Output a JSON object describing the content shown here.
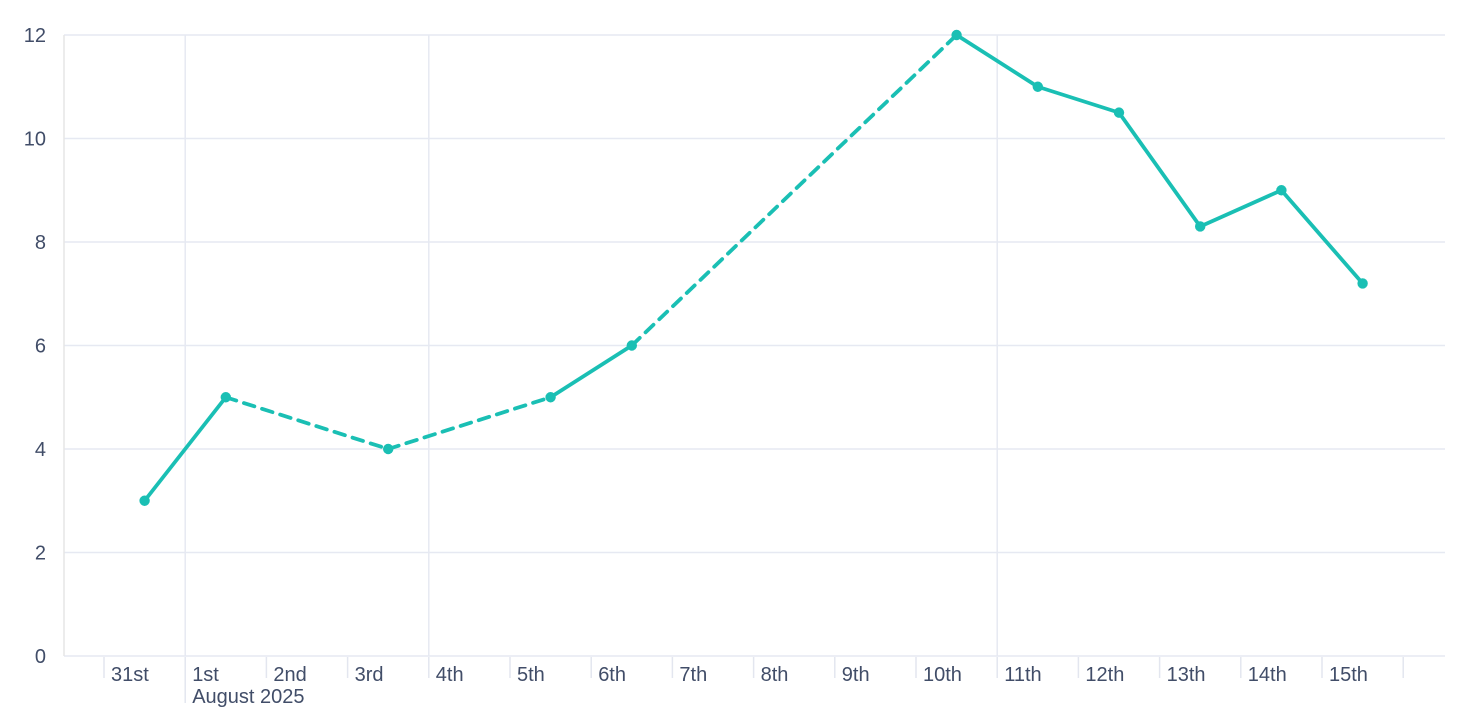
{
  "chart": {
    "background_color": "#ffffff",
    "line_color": "#1abfb4",
    "grid_color": "#e6e9f2",
    "axis_line_color": "#e6e6e6",
    "tick_color": "#e3e6ef",
    "label_color": "#414d68"
  },
  "chart_data": {
    "type": "line",
    "title": "",
    "xlabel": "",
    "ylabel": "",
    "x_tick_labels": [
      "31st",
      "1st",
      "2nd",
      "3rd",
      "4th",
      "5th",
      "6th",
      "7th",
      "8th",
      "9th",
      "10th",
      "11th",
      "12th",
      "13th",
      "14th",
      "15th"
    ],
    "x_month_label": "August 2025",
    "x_month_label_under": "1st",
    "x_month_boundary_index": 1,
    "vertical_gridline_boundary_indices": [
      1,
      4,
      11
    ],
    "y_ticks": [
      0,
      2,
      4,
      6,
      8,
      10,
      12
    ],
    "ylim": [
      0,
      12
    ],
    "grid": true,
    "legend": "none",
    "series": [
      {
        "name": "daily-values",
        "marker": "circle",
        "points": [
          {
            "date": "31st",
            "day_index": 0,
            "value": 3
          },
          {
            "date": "1st",
            "day_index": 1,
            "value": 5
          },
          {
            "date": "3rd",
            "day_index": 3,
            "value": 4
          },
          {
            "date": "5th",
            "day_index": 5,
            "value": 5
          },
          {
            "date": "6th",
            "day_index": 6,
            "value": 6
          },
          {
            "date": "10th",
            "day_index": 10,
            "value": 12
          },
          {
            "date": "11th",
            "day_index": 11,
            "value": 11
          },
          {
            "date": "12th",
            "day_index": 12,
            "value": 10.5
          },
          {
            "date": "13th",
            "day_index": 13,
            "value": 8.3
          },
          {
            "date": "14th",
            "day_index": 14,
            "value": 9
          },
          {
            "date": "15th",
            "day_index": 15,
            "value": 7.2
          }
        ],
        "segment_styles": [
          "solid",
          "dashed",
          "dashed",
          "solid",
          "dashed",
          "solid",
          "solid",
          "solid",
          "solid",
          "solid"
        ]
      }
    ]
  }
}
